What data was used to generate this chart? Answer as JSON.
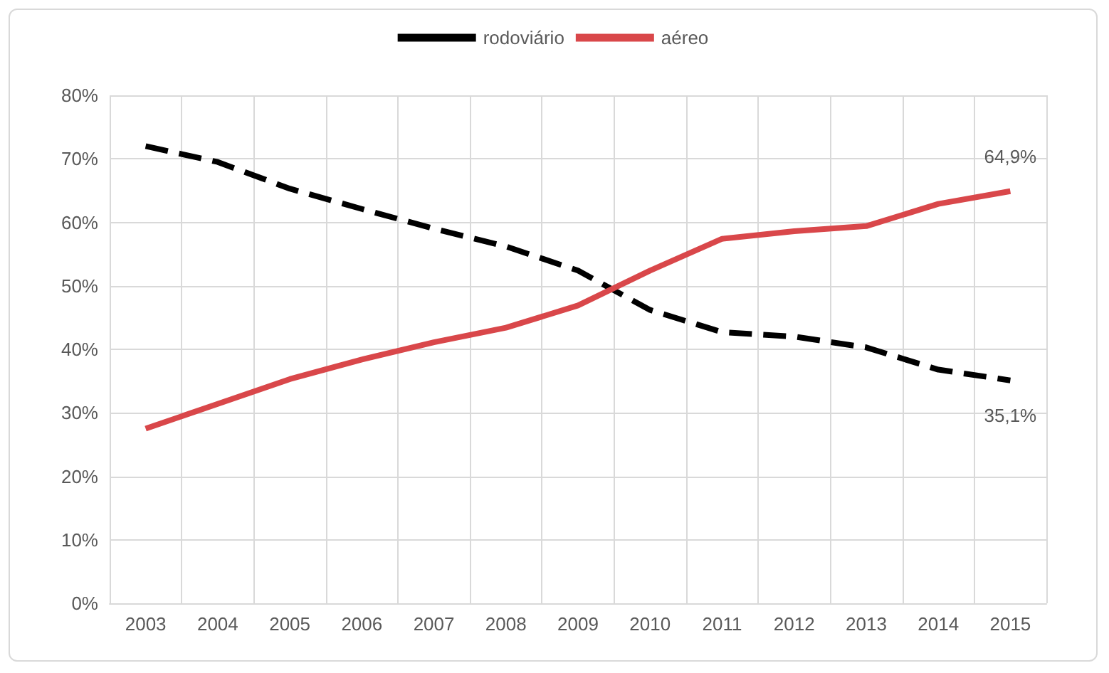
{
  "chart_data": {
    "type": "line",
    "categories": [
      "2003",
      "2004",
      "2005",
      "2006",
      "2007",
      "2008",
      "2009",
      "2010",
      "2011",
      "2012",
      "2013",
      "2014",
      "2015"
    ],
    "series": [
      {
        "name": "rodoviário",
        "color": "#000000",
        "line_style": "dashed",
        "values": [
          72,
          69.5,
          65.3,
          62.1,
          59,
          56.2,
          52.4,
          46.2,
          42.7,
          42,
          40.3,
          36.8,
          35.1
        ],
        "value_labels": [
          null,
          null,
          null,
          null,
          null,
          null,
          null,
          null,
          null,
          null,
          null,
          null,
          "35,1%"
        ]
      },
      {
        "name": "aéreo",
        "color": "#d9474a",
        "line_style": "solid",
        "values": [
          27.5,
          31.4,
          35.3,
          38.4,
          41.1,
          43.4,
          46.9,
          52.4,
          57.4,
          58.6,
          59.4,
          62.9,
          64.9
        ],
        "value_labels": [
          null,
          null,
          null,
          null,
          null,
          null,
          null,
          null,
          null,
          null,
          null,
          null,
          "64,9%"
        ]
      }
    ],
    "ylim": [
      0,
      80
    ],
    "yticks": [
      {
        "value": 0,
        "label": "0%"
      },
      {
        "value": 10,
        "label": "10%"
      },
      {
        "value": 20,
        "label": "20%"
      },
      {
        "value": 30,
        "label": "30%"
      },
      {
        "value": 40,
        "label": "40%"
      },
      {
        "value": 50,
        "label": "50%"
      },
      {
        "value": 60,
        "label": "60%"
      },
      {
        "value": 70,
        "label": "70%"
      },
      {
        "value": 80,
        "label": "80%"
      }
    ],
    "grid": true,
    "legend": "top",
    "marker": "none"
  }
}
